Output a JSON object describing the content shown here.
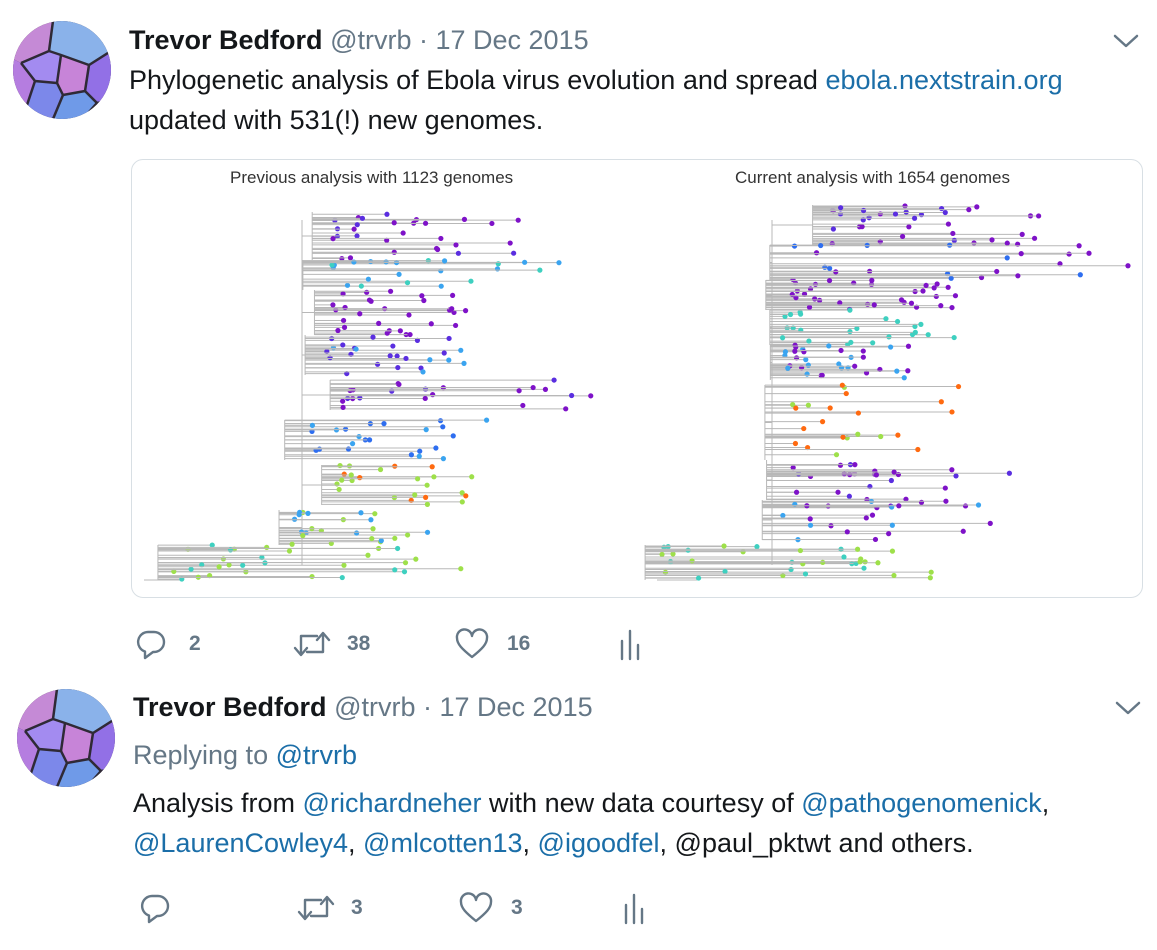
{
  "tweets": [
    {
      "author_name": "Trevor Bedford",
      "author_handle": "@trvrb",
      "date": "· 17 Dec 2015",
      "body": {
        "line1_text": "Phylogenetic analysis of Ebola virus evolution and spread ",
        "line1_link": "ebola.nextstrain.org",
        "line2_text": "updated with 531(!) new genomes."
      },
      "media": {
        "left_title": "Previous analysis with 1123 genomes",
        "right_title": "Current analysis with 1654 genomes"
      },
      "counts": {
        "replies": "2",
        "retweets": "38",
        "likes": "16"
      }
    },
    {
      "author_name": "Trevor Bedford",
      "author_handle": "@trvrb",
      "date": "· 17 Dec 2015",
      "replying_label": "Replying to ",
      "replying_handle": "@trvrb",
      "body": {
        "t1": "Analysis from ",
        "m1": "@richardneher",
        "t2": " with new data courtesy of ",
        "m2": "@pathogenomenick",
        "t3": ",",
        "m3": "@LaurenCowley4",
        "t4": ", ",
        "m4": "@mlcotten13",
        "t5": ", ",
        "m5": "@igoodfel",
        "t6": ", @paul_pktwt and others."
      },
      "counts": {
        "replies": "",
        "retweets": "3",
        "likes": "3"
      }
    }
  ],
  "icons": {
    "reply": "reply-icon",
    "retweet": "retweet-icon",
    "like": "heart-icon",
    "analytics": "analytics-icon",
    "caret": "chevron-down-icon"
  },
  "colors": {
    "link": "#1b6ea8",
    "muted": "#657786",
    "tree_colors": [
      "#7e12c8",
      "#5a2ee0",
      "#2e6ef0",
      "#3aa4f0",
      "#3ed0c0",
      "#9ee04a",
      "#ff6a10",
      "#ff3010"
    ]
  }
}
